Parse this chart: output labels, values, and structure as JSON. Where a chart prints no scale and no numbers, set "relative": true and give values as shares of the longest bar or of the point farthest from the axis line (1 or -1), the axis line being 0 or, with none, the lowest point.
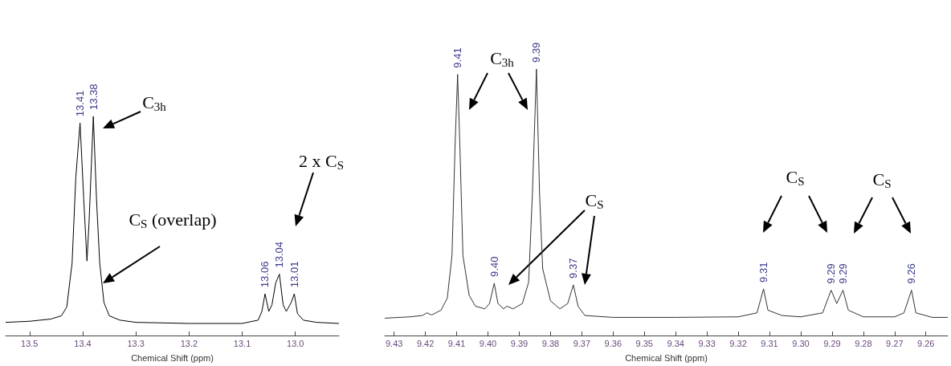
{
  "chart_data": [
    {
      "type": "line",
      "relative": true,
      "xlabel": "Chemical Shift (ppm)",
      "xlim": [
        13.545,
        12.918
      ],
      "xticks": [
        13.5,
        13.4,
        13.3,
        13.2,
        13.1,
        {
          "value": 13,
          "label": "13.0"
        }
      ],
      "marker": "none",
      "x": [
        13.545,
        13.5,
        13.46,
        13.44,
        13.43,
        13.42,
        13.413,
        13.405,
        13.398,
        13.392,
        13.388,
        13.38,
        13.374,
        13.368,
        13.36,
        13.35,
        13.33,
        13.3,
        13.2,
        13.1,
        13.07,
        13.063,
        13.057,
        13.05,
        13.044,
        13.037,
        13.03,
        13.023,
        13.017,
        13.008,
        13.002,
        12.996,
        12.985,
        12.96,
        12.918
      ],
      "series": [
        {
          "color": "#000000",
          "values": [
            0.06,
            0.065,
            0.075,
            0.09,
            0.13,
            0.33,
            0.72,
            0.97,
            0.62,
            0.34,
            0.52,
            1,
            0.62,
            0.33,
            0.15,
            0.09,
            0.07,
            0.06,
            0.055,
            0.055,
            0.07,
            0.11,
            0.19,
            0.11,
            0.14,
            0.24,
            0.28,
            0.14,
            0.11,
            0.15,
            0.19,
            0.1,
            0.07,
            0.06,
            0.055
          ]
        }
      ],
      "annotations": [
        {
          "text": "13.41",
          "x": 13.405,
          "y": 0.97
        },
        {
          "text": "13.38",
          "x": 13.38,
          "y": 1
        },
        {
          "text": "13.06",
          "x": 13.057,
          "y": 0.19
        },
        {
          "text": "13.04",
          "x": 13.03,
          "y": 0.28
        },
        {
          "text": "13.01",
          "x": 13.002,
          "y": 0.19
        },
        "C$_{3h}$",
        "C$_{S}$ (overlap)",
        "2 x C$_{S}$"
      ]
    },
    {
      "type": "line",
      "relative": true,
      "xlabel": "Chemical Shift (ppm)",
      "xlim": [
        9.433,
        9.253
      ],
      "xticks": [
        9.43,
        9.42,
        9.41,
        {
          "value": 9.4,
          "label": "9.40"
        },
        9.39,
        9.38,
        9.37,
        9.36,
        9.35,
        9.34,
        9.33,
        9.32,
        9.31,
        {
          "value": 9.3,
          "label": "9.30"
        },
        9.29,
        9.28,
        9.27,
        9.26
      ],
      "marker": "none",
      "x": [
        9.433,
        9.425,
        9.421,
        9.4195,
        9.418,
        9.415,
        9.413,
        9.4115,
        9.4105,
        9.4097,
        9.409,
        9.408,
        9.406,
        9.404,
        9.401,
        9.3995,
        9.398,
        9.3968,
        9.395,
        9.394,
        9.392,
        9.389,
        9.387,
        9.3858,
        9.3845,
        9.3835,
        9.3825,
        9.38,
        9.377,
        9.3745,
        9.3727,
        9.3712,
        9.369,
        9.36,
        9.34,
        9.32,
        9.314,
        9.3119,
        9.3105,
        9.306,
        9.3,
        9.293,
        9.2903,
        9.2885,
        9.2865,
        9.2848,
        9.28,
        9.27,
        9.267,
        9.2646,
        9.2632,
        9.258,
        9.253
      ],
      "series": [
        {
          "color": "#333333",
          "values": [
            0.065,
            0.07,
            0.075,
            0.085,
            0.077,
            0.095,
            0.14,
            0.3,
            0.72,
            0.98,
            0.72,
            0.3,
            0.15,
            0.11,
            0.1,
            0.12,
            0.196,
            0.12,
            0.1,
            0.11,
            0.1,
            0.12,
            0.2,
            0.53,
            1,
            0.53,
            0.25,
            0.13,
            0.1,
            0.12,
            0.19,
            0.11,
            0.075,
            0.068,
            0.068,
            0.07,
            0.085,
            0.175,
            0.095,
            0.075,
            0.07,
            0.085,
            0.17,
            0.12,
            0.17,
            0.095,
            0.07,
            0.07,
            0.085,
            0.17,
            0.085,
            0.068,
            0.068
          ]
        }
      ],
      "annotations": [
        {
          "text": "9.41",
          "x": 9.4097,
          "y": 0.98
        },
        {
          "text": "9.40",
          "x": 9.398,
          "y": 0.196
        },
        {
          "text": "9.39",
          "x": 9.3845,
          "y": 1
        },
        {
          "text": "9.37",
          "x": 9.3727,
          "y": 0.19
        },
        {
          "text": "9.31",
          "x": 9.3119,
          "y": 0.175
        },
        {
          "text": "9.29",
          "x": 9.2903,
          "y": 0.17
        },
        {
          "text": "9.29",
          "x": 9.2865,
          "y": 0.17
        },
        {
          "text": "9.26",
          "x": 9.2646,
          "y": 0.17
        },
        "C$_{3h}$",
        "C$_{S}$",
        "C$_{S}$",
        "C$_{S}$"
      ]
    }
  ]
}
